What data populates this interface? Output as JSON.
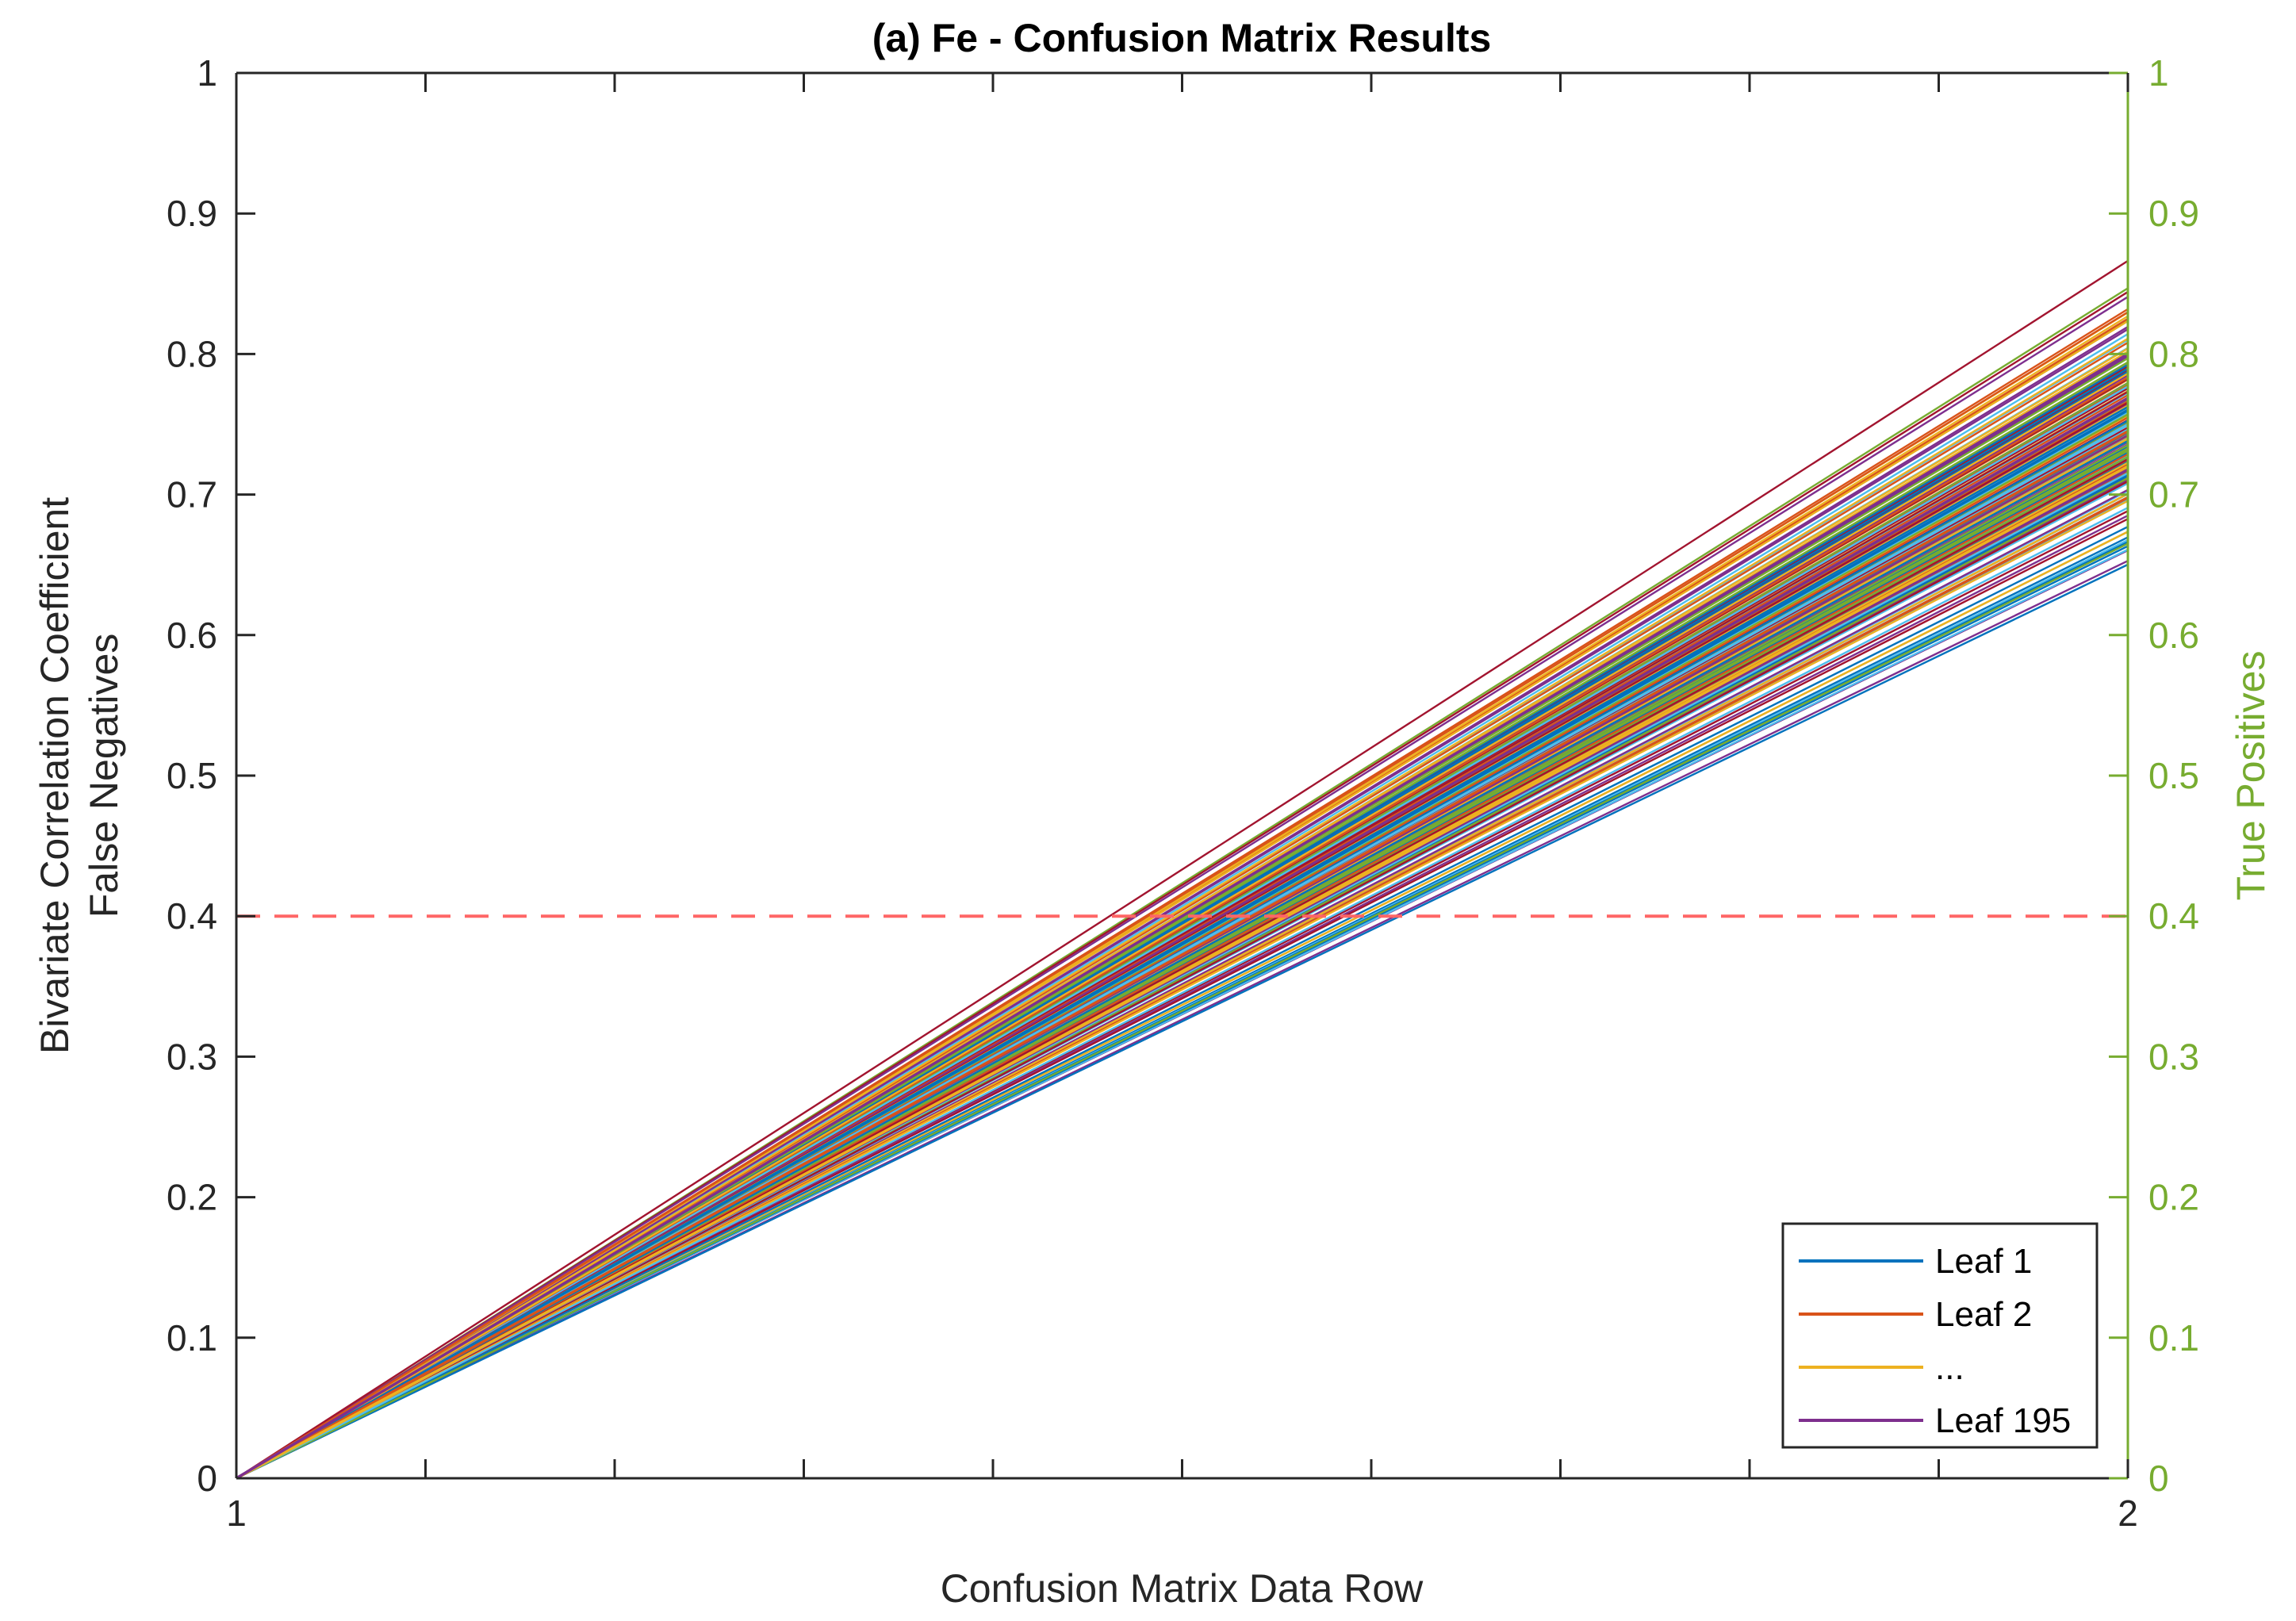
{
  "chart_data": {
    "type": "line",
    "title": "(a) Fe - Confusion Matrix Results",
    "xlabel": "Confusion Matrix Data Row",
    "ylabel_left": [
      "Bivariate Correlation Coefficient",
      "False Negatives"
    ],
    "ylabel_right": "True Positives",
    "xlim": [
      1,
      2
    ],
    "ylim_left": [
      0,
      1
    ],
    "ylim_right": [
      0,
      1
    ],
    "x_ticks": [
      1,
      2
    ],
    "x_minor_ticks": [
      1.1,
      1.2,
      1.3,
      1.4,
      1.5,
      1.6,
      1.7,
      1.8,
      1.9
    ],
    "y_ticks_left": [
      "0",
      "0.1",
      "0.2",
      "0.3",
      "0.4",
      "0.5",
      "0.6",
      "0.7",
      "0.8",
      "0.9",
      "1"
    ],
    "y_ticks_right": [
      "0",
      "0.1",
      "0.2",
      "0.3",
      "0.4",
      "0.5",
      "0.6",
      "0.7",
      "0.8",
      "0.9",
      "1"
    ],
    "series_count": 195,
    "series_start": {
      "x": 1,
      "y": 0
    },
    "series_end_x": 2,
    "series_end_range": [
      0.62,
      0.88
    ],
    "series_colors": [
      "#0072BD",
      "#D95319",
      "#EDB120",
      "#7E2F8E",
      "#77AC30",
      "#4DBEEE",
      "#A2142F"
    ],
    "highlighted_series": [
      {
        "name": "Leaf 1",
        "color": "#0072BD",
        "end_y": 0.76
      },
      {
        "name": "Leaf 2",
        "color": "#D95319",
        "end_y": 0.745
      },
      {
        "name": "...",
        "color": "#EDB120",
        "end_y": 0.72
      },
      {
        "name": "Leaf 195",
        "color": "#7E2F8E",
        "end_y": 0.8
      }
    ],
    "reference_line": {
      "y": 0.4,
      "style": "dashed",
      "color": "#FF6666"
    },
    "legend": {
      "location": "bottom-right",
      "entries": [
        "Leaf 1",
        "Leaf 2",
        "...",
        "Leaf 195"
      ]
    },
    "left_axis_color": "#262626",
    "right_axis_color": "#77AC30"
  }
}
